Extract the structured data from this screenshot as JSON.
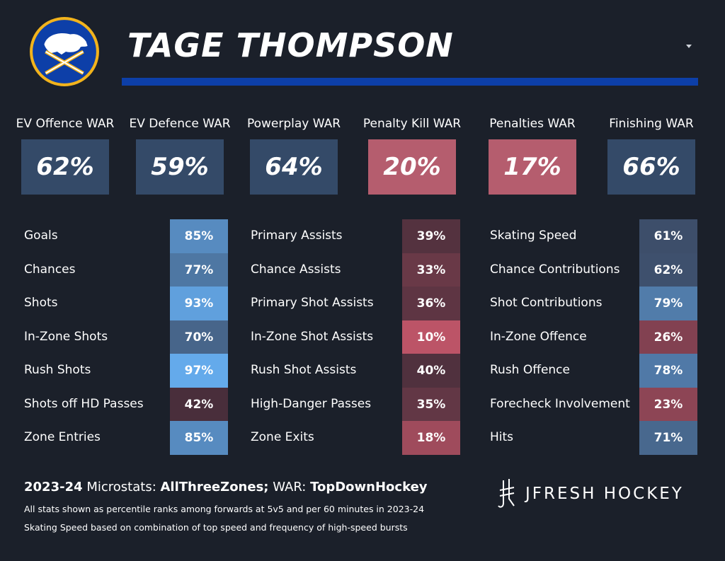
{
  "player": {
    "name": "TAGE THOMPSON"
  },
  "colors": {
    "background": "#1b202a",
    "accent_bar": "#0d3fa8",
    "team_blue": "#0d3fa8",
    "team_gold": "#f2b31c"
  },
  "icons": {
    "logo": "sabres-logo-icon",
    "dropdown": "caret-down-icon",
    "brand": "jfresh-logo-icon"
  },
  "war": [
    {
      "label": "EV Offence WAR",
      "value": "62%",
      "pct": 62
    },
    {
      "label": "EV Defence WAR",
      "value": "59%",
      "pct": 59
    },
    {
      "label": "Powerplay WAR",
      "value": "64%",
      "pct": 64
    },
    {
      "label": "Penalty Kill WAR",
      "value": "20%",
      "pct": 20
    },
    {
      "label": "Penalties WAR",
      "value": "17%",
      "pct": 17
    },
    {
      "label": "Finishing WAR",
      "value": "66%",
      "pct": 66
    }
  ],
  "stats": [
    [
      {
        "label": "Goals",
        "value": "85%",
        "pct": 85
      },
      {
        "label": "Chances",
        "value": "77%",
        "pct": 77
      },
      {
        "label": "Shots",
        "value": "93%",
        "pct": 93
      },
      {
        "label": "In-Zone Shots",
        "value": "70%",
        "pct": 70
      },
      {
        "label": "Rush Shots",
        "value": "97%",
        "pct": 97
      },
      {
        "label": "Shots off HD Passes",
        "value": "42%",
        "pct": 42
      },
      {
        "label": "Zone Entries",
        "value": "85%",
        "pct": 85
      }
    ],
    [
      {
        "label": "Primary Assists",
        "value": "39%",
        "pct": 39
      },
      {
        "label": "Chance Assists",
        "value": "33%",
        "pct": 33
      },
      {
        "label": "Primary Shot Assists",
        "value": "36%",
        "pct": 36
      },
      {
        "label": "In-Zone Shot Assists",
        "value": "10%",
        "pct": 10
      },
      {
        "label": "Rush Shot Assists",
        "value": "40%",
        "pct": 40
      },
      {
        "label": "High-Danger Passes",
        "value": "35%",
        "pct": 35
      },
      {
        "label": "Zone Exits",
        "value": "18%",
        "pct": 18
      }
    ],
    [
      {
        "label": "Skating Speed",
        "value": "61%",
        "pct": 61
      },
      {
        "label": "Chance Contributions",
        "value": "62%",
        "pct": 62
      },
      {
        "label": "Shot Contributions",
        "value": "79%",
        "pct": 79
      },
      {
        "label": "In-Zone Offence",
        "value": "26%",
        "pct": 26
      },
      {
        "label": "Rush Offence",
        "value": "78%",
        "pct": 78
      },
      {
        "label": "Forecheck Involvement",
        "value": "23%",
        "pct": 23
      },
      {
        "label": "Hits",
        "value": "71%",
        "pct": 71
      }
    ]
  ],
  "footer": {
    "season": "2023-24",
    "microstats_label": " Microstats: ",
    "microstats_source": "AllThreeZones;",
    "war_label": " WAR: ",
    "war_source": "TopDownHockey",
    "note1": "All stats shown as percentile ranks among forwards at 5v5 and per 60 minutes in 2023-24",
    "note2": "Skating Speed based on combination of top speed and frequency of high-speed bursts"
  },
  "brand": {
    "name": "JFRESH HOCKEY"
  }
}
